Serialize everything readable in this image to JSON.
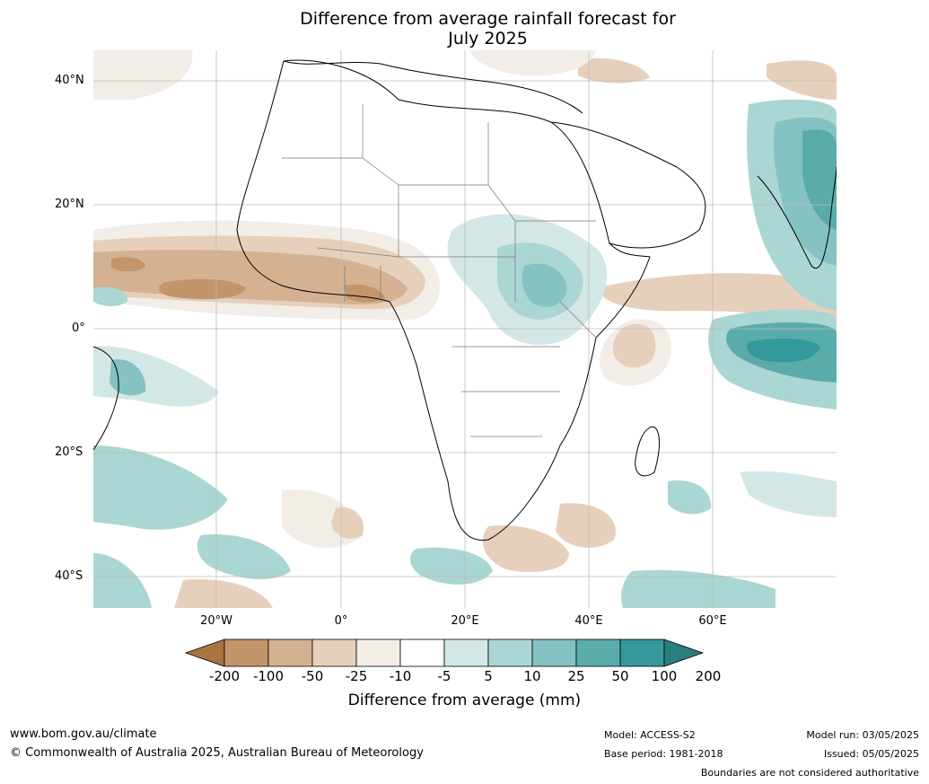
{
  "title_line1": "Difference from average rainfall forecast for",
  "title_line2": "July 2025",
  "lat_labels": [
    "40°N",
    "20°N",
    "0°",
    "20°S",
    "40°S"
  ],
  "lon_labels": [
    "20°W",
    "0°",
    "20°E",
    "40°E",
    "60°E"
  ],
  "colorbar": {
    "title": "Difference from average (mm)",
    "ticks": [
      "-200",
      "-100",
      "-50",
      "-25",
      "-10",
      "-5",
      "5",
      "10",
      "25",
      "50",
      "100",
      "200"
    ],
    "colors": [
      "#a97440",
      "#c3956a",
      "#d4b291",
      "#e6d0bc",
      "#f3ede8",
      "#ffffff",
      "#d3e8e6",
      "#aad6d3",
      "#84c3c1",
      "#5aacab",
      "#34999a",
      "#2b7d7e"
    ]
  },
  "footer": {
    "website": "www.bom.gov.au/climate",
    "copyright": "© Commonwealth of Australia 2025, Australian Bureau of Meteorology",
    "model": "Model: ACCESS-S2",
    "base_period": "Base period: 1981-2018",
    "model_run": "Model run: 03/05/2025",
    "issued": "Issued: 05/05/2025",
    "disclaimer": "Boundaries are not considered authoritative"
  }
}
